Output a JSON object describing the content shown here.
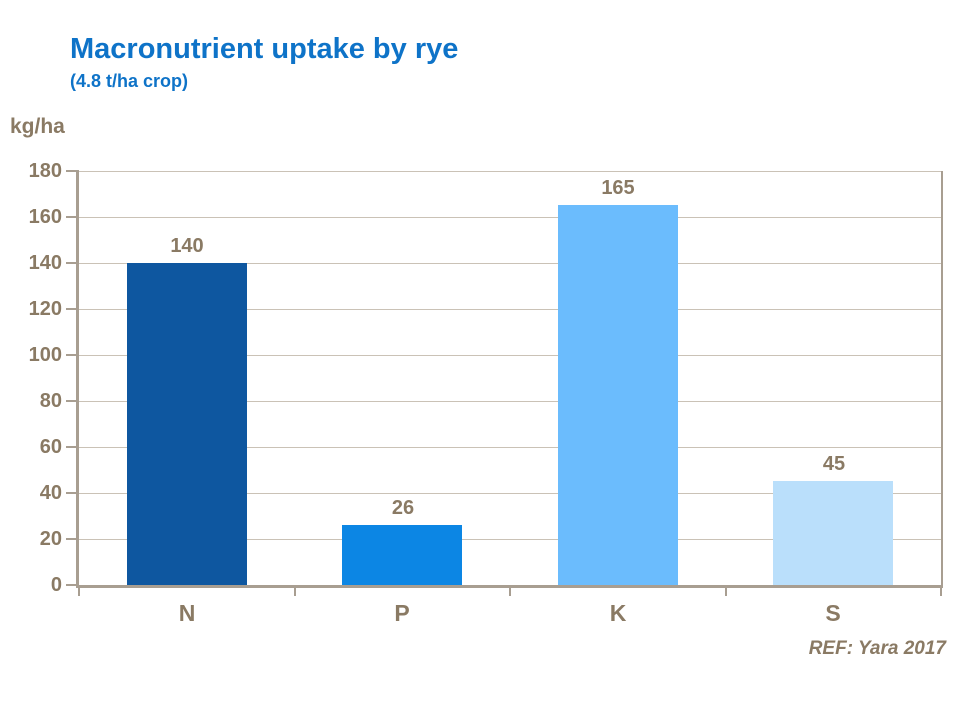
{
  "chart_data": {
    "type": "bar",
    "title": "Macronutrient uptake by rye",
    "subtitle": "(4.8 t/ha crop)",
    "ylabel": "kg/ha",
    "xlabel": "",
    "categories": [
      "N",
      "P",
      "K",
      "S"
    ],
    "values": [
      140,
      26,
      165,
      45
    ],
    "ylim": [
      0,
      180
    ],
    "ytick_step": 20,
    "yticks": [
      0,
      20,
      40,
      60,
      80,
      100,
      120,
      140,
      160,
      180
    ],
    "grid": true,
    "legend": false,
    "bar_colors": [
      "#0E57A0",
      "#0C86E4",
      "#6BBCFD",
      "#BADFFB"
    ],
    "title_color": "#0E73C8",
    "tick_label_color": "#8A7A64",
    "axis_color": "#A89E91",
    "gridline_color": "#CAC2B6"
  },
  "footer": {
    "reference": "REF: Yara 2017"
  }
}
